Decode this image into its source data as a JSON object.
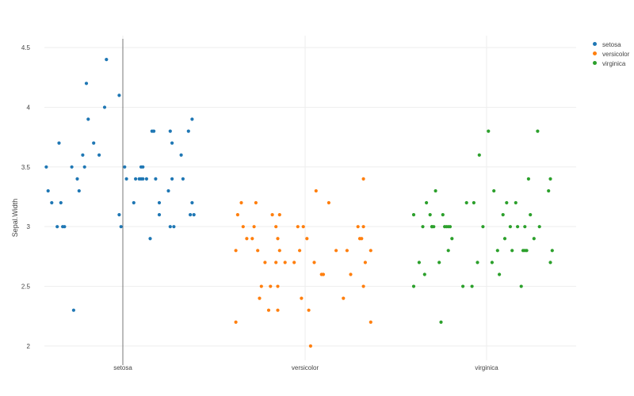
{
  "chart_data": {
    "type": "scatter",
    "title": "",
    "xlabel": "",
    "ylabel": "Sepal.Width",
    "x_categories": [
      "setosa",
      "versicolor",
      "virginica"
    ],
    "ylim": [
      1.88,
      4.6
    ],
    "yticks": [
      "2",
      "2.5",
      "3",
      "3.5",
      "4",
      "4.5"
    ],
    "grid": true,
    "legend_position": "top-right",
    "hover_line_category": "setosa",
    "series": [
      {
        "name": "setosa",
        "color": "#1f77b4",
        "points": [
          [
            -0.42,
            3.5
          ],
          [
            -0.41,
            3.3
          ],
          [
            -0.39,
            3.2
          ],
          [
            -0.36,
            3.0
          ],
          [
            -0.35,
            3.7
          ],
          [
            -0.34,
            3.2
          ],
          [
            -0.33,
            3.0
          ],
          [
            -0.32,
            3.0
          ],
          [
            -0.28,
            3.5
          ],
          [
            -0.27,
            2.3
          ],
          [
            -0.25,
            3.4
          ],
          [
            -0.24,
            3.3
          ],
          [
            -0.22,
            3.6
          ],
          [
            -0.21,
            3.5
          ],
          [
            -0.2,
            4.2
          ],
          [
            -0.19,
            3.9
          ],
          [
            -0.16,
            3.7
          ],
          [
            -0.13,
            3.6
          ],
          [
            -0.1,
            4.0
          ],
          [
            -0.09,
            4.4
          ],
          [
            -0.02,
            3.1
          ],
          [
            -0.02,
            4.1
          ],
          [
            -0.01,
            3.0
          ],
          [
            0.01,
            3.5
          ],
          [
            0.02,
            3.4
          ],
          [
            0.06,
            3.2
          ],
          [
            0.07,
            3.4
          ],
          [
            0.09,
            3.4
          ],
          [
            0.1,
            3.5
          ],
          [
            0.1,
            3.4
          ],
          [
            0.11,
            3.5
          ],
          [
            0.11,
            3.4
          ],
          [
            0.13,
            3.4
          ],
          [
            0.15,
            2.9
          ],
          [
            0.16,
            3.8
          ],
          [
            0.17,
            3.8
          ],
          [
            0.18,
            3.4
          ],
          [
            0.2,
            3.2
          ],
          [
            0.2,
            3.1
          ],
          [
            0.25,
            3.3
          ],
          [
            0.26,
            3.8
          ],
          [
            0.26,
            3.0
          ],
          [
            0.27,
            3.4
          ],
          [
            0.27,
            3.7
          ],
          [
            0.28,
            3.0
          ],
          [
            0.32,
            3.6
          ],
          [
            0.33,
            3.4
          ],
          [
            0.36,
            3.8
          ],
          [
            0.37,
            3.1
          ],
          [
            0.38,
            3.9
          ],
          [
            0.38,
            3.2
          ],
          [
            0.39,
            3.1
          ]
        ]
      },
      {
        "name": "versicolor",
        "color": "#ff7f0e",
        "points": [
          [
            -0.38,
            2.8
          ],
          [
            -0.38,
            2.2
          ],
          [
            -0.37,
            3.1
          ],
          [
            -0.35,
            3.2
          ],
          [
            -0.34,
            3.0
          ],
          [
            -0.32,
            2.9
          ],
          [
            -0.29,
            2.9
          ],
          [
            -0.28,
            3.0
          ],
          [
            -0.27,
            3.2
          ],
          [
            -0.26,
            2.8
          ],
          [
            -0.25,
            2.4
          ],
          [
            -0.24,
            2.5
          ],
          [
            -0.22,
            2.7
          ],
          [
            -0.2,
            2.3
          ],
          [
            -0.19,
            2.5
          ],
          [
            -0.18,
            3.1
          ],
          [
            -0.16,
            2.7
          ],
          [
            -0.16,
            3.0
          ],
          [
            -0.15,
            2.9
          ],
          [
            -0.15,
            2.3
          ],
          [
            -0.14,
            2.8
          ],
          [
            -0.15,
            2.5
          ],
          [
            -0.14,
            3.1
          ],
          [
            -0.11,
            2.7
          ],
          [
            -0.06,
            2.7
          ],
          [
            -0.04,
            3.0
          ],
          [
            -0.03,
            2.8
          ],
          [
            -0.02,
            2.4
          ],
          [
            -0.01,
            3.0
          ],
          [
            0.01,
            2.9
          ],
          [
            0.02,
            2.3
          ],
          [
            0.03,
            2.0
          ],
          [
            0.05,
            2.7
          ],
          [
            0.06,
            3.3
          ],
          [
            0.09,
            2.6
          ],
          [
            0.1,
            2.6
          ],
          [
            0.13,
            3.2
          ],
          [
            0.17,
            2.8
          ],
          [
            0.21,
            2.4
          ],
          [
            0.23,
            2.8
          ],
          [
            0.25,
            2.6
          ],
          [
            0.29,
            3.0
          ],
          [
            0.3,
            2.9
          ],
          [
            0.31,
            2.9
          ],
          [
            0.32,
            3.4
          ],
          [
            0.32,
            2.5
          ],
          [
            0.32,
            3.0
          ],
          [
            0.33,
            2.7
          ],
          [
            0.36,
            2.2
          ],
          [
            0.36,
            2.8
          ]
        ]
      },
      {
        "name": "virginica",
        "color": "#2ca02c",
        "points": [
          [
            -0.4,
            3.1
          ],
          [
            -0.4,
            2.5
          ],
          [
            -0.37,
            2.7
          ],
          [
            -0.35,
            3.0
          ],
          [
            -0.34,
            2.6
          ],
          [
            -0.33,
            3.2
          ],
          [
            -0.31,
            3.1
          ],
          [
            -0.3,
            3.0
          ],
          [
            -0.3,
            3.0
          ],
          [
            -0.29,
            3.0
          ],
          [
            -0.28,
            3.3
          ],
          [
            -0.26,
            2.7
          ],
          [
            -0.25,
            2.2
          ],
          [
            -0.24,
            3.1
          ],
          [
            -0.23,
            3.0
          ],
          [
            -0.22,
            3.0
          ],
          [
            -0.21,
            2.8
          ],
          [
            -0.21,
            3.0
          ],
          [
            -0.2,
            3.0
          ],
          [
            -0.19,
            2.9
          ],
          [
            -0.13,
            2.5
          ],
          [
            -0.11,
            3.2
          ],
          [
            -0.08,
            2.5
          ],
          [
            -0.07,
            3.2
          ],
          [
            -0.05,
            2.7
          ],
          [
            -0.04,
            3.6
          ],
          [
            -0.02,
            3.0
          ],
          [
            0.01,
            3.8
          ],
          [
            0.03,
            2.7
          ],
          [
            0.04,
            3.3
          ],
          [
            0.06,
            2.8
          ],
          [
            0.07,
            2.6
          ],
          [
            0.09,
            3.1
          ],
          [
            0.1,
            2.9
          ],
          [
            0.11,
            3.2
          ],
          [
            0.13,
            3.0
          ],
          [
            0.14,
            2.8
          ],
          [
            0.16,
            3.2
          ],
          [
            0.17,
            3.0
          ],
          [
            0.19,
            2.5
          ],
          [
            0.2,
            2.8
          ],
          [
            0.21,
            3.0
          ],
          [
            0.21,
            2.8
          ],
          [
            0.22,
            2.8
          ],
          [
            0.23,
            3.4
          ],
          [
            0.24,
            3.1
          ],
          [
            0.26,
            2.9
          ],
          [
            0.28,
            3.8
          ],
          [
            0.29,
            3.0
          ],
          [
            0.34,
            3.3
          ],
          [
            0.35,
            3.4
          ],
          [
            0.35,
            2.7
          ],
          [
            0.36,
            2.8
          ]
        ]
      }
    ]
  }
}
